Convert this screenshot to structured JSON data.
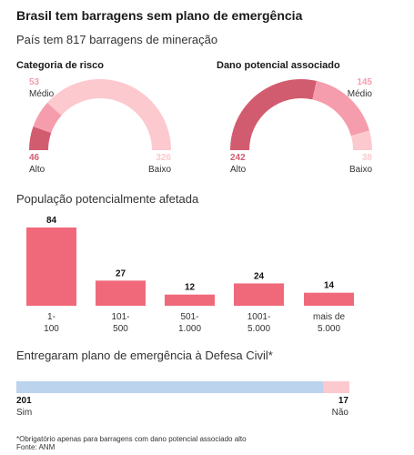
{
  "title": "Brasil tem barragens sem plano de emergência",
  "subtitle": "País tem 817 barragens de mineração",
  "colors": {
    "dark": "#d25c6f",
    "mid": "#f59dac",
    "light": "#fcc9cf",
    "bar": "#f0697b",
    "blue": "#bcd3ee",
    "pink": "#fcc9cf"
  },
  "chart_data": [
    {
      "type": "pie",
      "title": "Categoria de risco",
      "categories": [
        "Alto",
        "Médio",
        "Baixo"
      ],
      "values": [
        46,
        53,
        326
      ]
    },
    {
      "type": "pie",
      "title": "Dano potencial associado",
      "categories": [
        "Alto",
        "Médio",
        "Baixo"
      ],
      "values": [
        242,
        145,
        38
      ]
    },
    {
      "type": "bar",
      "title": "População potencialmente afetada",
      "categories": [
        [
          "1-",
          "100"
        ],
        [
          "101-",
          "500"
        ],
        [
          "501-",
          "1.000"
        ],
        [
          "1001-",
          "5.000"
        ],
        [
          "mais de",
          "5.000"
        ]
      ],
      "values": [
        84,
        27,
        12,
        24,
        14
      ]
    },
    {
      "type": "bar",
      "title": "Entregaram plano de emergência à Defesa Civil*",
      "categories": [
        "Sim",
        "Não"
      ],
      "values": [
        201,
        17
      ]
    }
  ],
  "footnote": "*Obrigatório apenas para barragens com dano potencial associado alto",
  "source": "Fonte: ANM"
}
